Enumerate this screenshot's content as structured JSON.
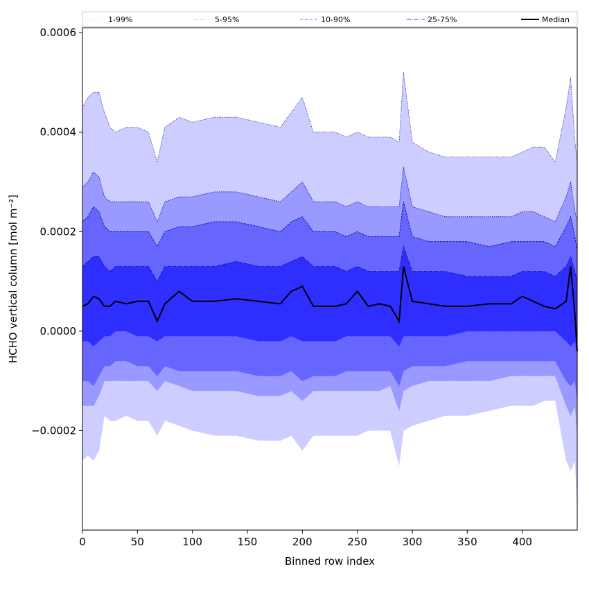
{
  "chart_data": {
    "type": "area",
    "title": "",
    "xlabel": "Binned row index",
    "ylabel": "HCHO vertical column [mol m⁻²]",
    "xlim": [
      0,
      450
    ],
    "ylim": [
      -0.0004,
      0.00061
    ],
    "x_ticks": [
      0,
      50,
      100,
      150,
      200,
      250,
      300,
      350,
      400
    ],
    "x_tick_labels": [
      "0",
      "50",
      "100",
      "150",
      "200",
      "250",
      "300",
      "350",
      "400"
    ],
    "y_ticks": [
      -0.0002,
      0.0,
      0.0002,
      0.0004,
      0.0006
    ],
    "y_tick_labels": [
      "−0.0002",
      "0.0000",
      "0.0002",
      "0.0004",
      "0.0006"
    ],
    "grid": false,
    "legend": {
      "placement": "top",
      "entries": [
        {
          "label": "1-99%",
          "color": "#cfcfff",
          "style": "dotted"
        },
        {
          "label": "5-95%",
          "color": "#9a9aff",
          "style": "dotted"
        },
        {
          "label": "10-90%",
          "color": "#6f6fff",
          "style": "dashed"
        },
        {
          "label": "25-75%",
          "color": "#3535ff",
          "style": "dashdot"
        },
        {
          "label": "Median",
          "color": "#000000",
          "style": "solid"
        }
      ]
    },
    "x": [
      0,
      5,
      10,
      15,
      20,
      25,
      30,
      40,
      50,
      60,
      68,
      75,
      88,
      100,
      120,
      140,
      160,
      180,
      190,
      200,
      210,
      230,
      240,
      250,
      260,
      270,
      280,
      288,
      292,
      300,
      315,
      330,
      350,
      370,
      390,
      400,
      410,
      420,
      430,
      440,
      444,
      448,
      450
    ],
    "bands": [
      {
        "name": "1-99%",
        "color": "#cdcdff",
        "upper": [
          0.00045,
          0.00047,
          0.00048,
          0.00048,
          0.00044,
          0.00041,
          0.0004,
          0.00041,
          0.00041,
          0.0004,
          0.00034,
          0.00041,
          0.00043,
          0.00042,
          0.00043,
          0.00043,
          0.00042,
          0.00041,
          0.00044,
          0.00047,
          0.0004,
          0.0004,
          0.00039,
          0.0004,
          0.00039,
          0.00039,
          0.00039,
          0.00038,
          0.00052,
          0.00038,
          0.00036,
          0.00035,
          0.00035,
          0.00035,
          0.00035,
          0.00036,
          0.00037,
          0.00037,
          0.00034,
          0.00045,
          0.00051,
          0.00038,
          0.00034
        ],
        "lower": [
          -0.00026,
          -0.00025,
          -0.00026,
          -0.00024,
          -0.00017,
          -0.00018,
          -0.00018,
          -0.00017,
          -0.00018,
          -0.00018,
          -0.00021,
          -0.00018,
          -0.00019,
          -0.0002,
          -0.00021,
          -0.00021,
          -0.00022,
          -0.00022,
          -0.00021,
          -0.00024,
          -0.00021,
          -0.00021,
          -0.00021,
          -0.00021,
          -0.0002,
          -0.0002,
          -0.0002,
          -0.00027,
          -0.0002,
          -0.00019,
          -0.00018,
          -0.00017,
          -0.00017,
          -0.00016,
          -0.00015,
          -0.00015,
          -0.00015,
          -0.00014,
          -0.00014,
          -0.00026,
          -0.00028,
          -0.00026,
          -0.00036
        ]
      },
      {
        "name": "5-95%",
        "color": "#9999ff",
        "upper": [
          0.00029,
          0.0003,
          0.00032,
          0.00031,
          0.00027,
          0.00026,
          0.00026,
          0.00026,
          0.00026,
          0.00026,
          0.00022,
          0.00026,
          0.00027,
          0.00027,
          0.00028,
          0.00028,
          0.00027,
          0.00026,
          0.00028,
          0.0003,
          0.00026,
          0.00026,
          0.00025,
          0.00026,
          0.00025,
          0.00025,
          0.00025,
          0.00025,
          0.00033,
          0.00025,
          0.00024,
          0.00023,
          0.00023,
          0.00023,
          0.00023,
          0.00024,
          0.00024,
          0.00023,
          0.00022,
          0.00027,
          0.0003,
          0.00024,
          0.00022
        ],
        "lower": [
          -0.00015,
          -0.00015,
          -0.00015,
          -0.00013,
          -0.0001,
          -0.0001,
          -0.0001,
          -0.0001,
          -0.0001,
          -0.0001,
          -0.00012,
          -0.0001,
          -0.00011,
          -0.00012,
          -0.00012,
          -0.00012,
          -0.00013,
          -0.00013,
          -0.00012,
          -0.00014,
          -0.00012,
          -0.00012,
          -0.00012,
          -0.00012,
          -0.00012,
          -0.00012,
          -0.00011,
          -0.00016,
          -0.00012,
          -0.00011,
          -0.0001,
          -0.0001,
          -0.0001,
          -0.0001,
          -9e-05,
          -9e-05,
          -9e-05,
          -9e-05,
          -9e-05,
          -0.00015,
          -0.00017,
          -0.00015,
          -0.00021
        ]
      },
      {
        "name": "10-90%",
        "color": "#6666ff",
        "upper": [
          0.00022,
          0.00023,
          0.00025,
          0.00024,
          0.00021,
          0.0002,
          0.0002,
          0.0002,
          0.0002,
          0.0002,
          0.00017,
          0.0002,
          0.00021,
          0.00021,
          0.00022,
          0.00022,
          0.00021,
          0.0002,
          0.00022,
          0.00023,
          0.0002,
          0.0002,
          0.00019,
          0.0002,
          0.00019,
          0.00019,
          0.00019,
          0.00019,
          0.00026,
          0.00019,
          0.00018,
          0.00018,
          0.00018,
          0.00017,
          0.00018,
          0.00018,
          0.00018,
          0.00018,
          0.00017,
          0.00021,
          0.00023,
          0.00019,
          0.00016
        ],
        "lower": [
          -0.0001,
          -0.0001,
          -0.00011,
          -9e-05,
          -7e-05,
          -7e-05,
          -6e-05,
          -6e-05,
          -7e-05,
          -7e-05,
          -9e-05,
          -7e-05,
          -8e-05,
          -8e-05,
          -8e-05,
          -8e-05,
          -9e-05,
          -9e-05,
          -8e-05,
          -0.0001,
          -9e-05,
          -9e-05,
          -8e-05,
          -8e-05,
          -8e-05,
          -8e-05,
          -8e-05,
          -0.00011,
          -8e-05,
          -7e-05,
          -7e-05,
          -7e-05,
          -6e-05,
          -6e-05,
          -6e-05,
          -6e-05,
          -6e-05,
          -6e-05,
          -6e-05,
          -0.0001,
          -0.00011,
          -0.0001,
          -0.00014
        ]
      },
      {
        "name": "25-75%",
        "color": "#2e2eff",
        "upper": [
          0.00013,
          0.00014,
          0.00015,
          0.00015,
          0.00013,
          0.00012,
          0.00013,
          0.00013,
          0.00013,
          0.00013,
          0.0001,
          0.00013,
          0.00013,
          0.00013,
          0.00013,
          0.00014,
          0.00013,
          0.00013,
          0.00014,
          0.00015,
          0.00013,
          0.00013,
          0.00012,
          0.00013,
          0.00012,
          0.00012,
          0.00012,
          0.00012,
          0.00017,
          0.00012,
          0.00012,
          0.00012,
          0.00011,
          0.00011,
          0.00011,
          0.00012,
          0.00012,
          0.00012,
          0.00011,
          0.00013,
          0.00015,
          0.00012,
          0.0001
        ],
        "lower": [
          -2e-05,
          -2e-05,
          -3e-05,
          -2e-05,
          -1e-05,
          -1e-05,
          0.0,
          0.0,
          -1e-05,
          -1e-05,
          -2e-05,
          -1e-05,
          -1e-05,
          -1e-05,
          -1e-05,
          -1e-05,
          -2e-05,
          -2e-05,
          -1e-05,
          -2e-05,
          -2e-05,
          -2e-05,
          -1e-05,
          -1e-05,
          -1e-05,
          -1e-05,
          -1e-05,
          -3e-05,
          -1e-05,
          -1e-05,
          -1e-05,
          -1e-05,
          0.0,
          0.0,
          0.0,
          0.0,
          0.0,
          0.0,
          0.0,
          -2e-05,
          -3e-05,
          -2e-05,
          -5e-05
        ]
      }
    ],
    "median": {
      "name": "Median",
      "color": "#000000",
      "values": [
        5e-05,
        5.5e-05,
        7e-05,
        6.5e-05,
        5e-05,
        5e-05,
        6e-05,
        5.5e-05,
        6e-05,
        6e-05,
        2e-05,
        5.5e-05,
        8e-05,
        6e-05,
        6e-05,
        6.5e-05,
        6e-05,
        5.5e-05,
        8e-05,
        9e-05,
        5e-05,
        5e-05,
        5.5e-05,
        8e-05,
        5e-05,
        5.5e-05,
        5e-05,
        2e-05,
        0.00013,
        6e-05,
        5.5e-05,
        5e-05,
        5e-05,
        5.5e-05,
        5.5e-05,
        7e-05,
        6e-05,
        5e-05,
        4.5e-05,
        6e-05,
        0.00013,
        3e-05,
        -4e-05
      ]
    }
  }
}
